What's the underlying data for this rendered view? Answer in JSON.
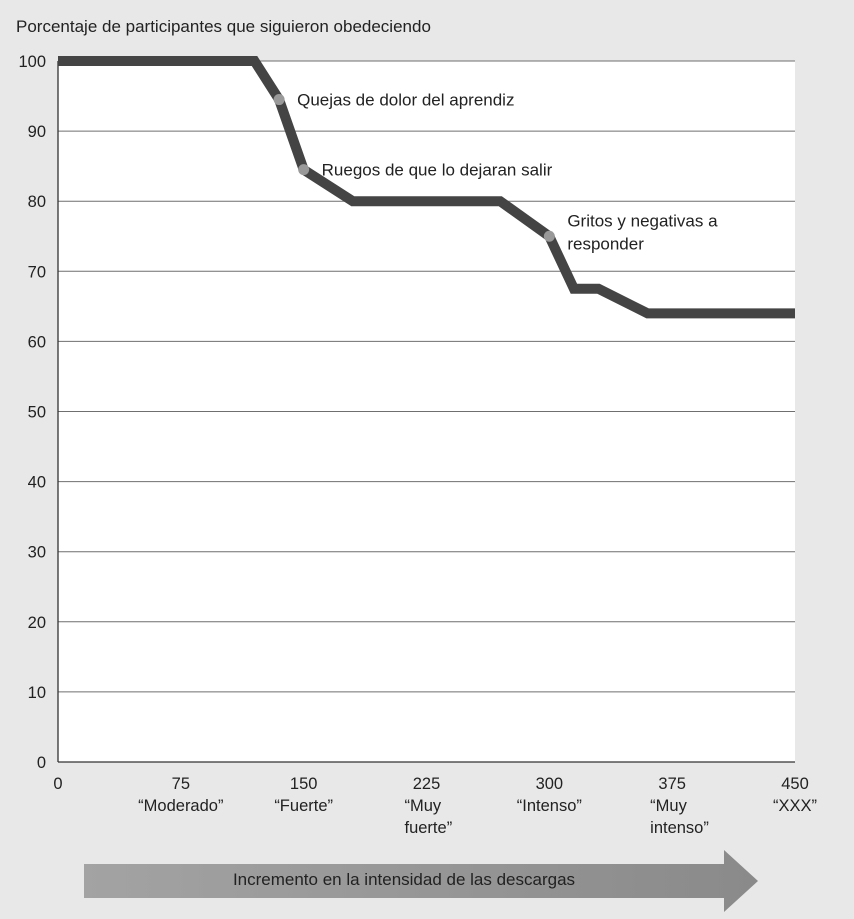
{
  "chart_data": {
    "type": "line",
    "ylabel": "Porcentaje de participantes que siguieron obedeciendo",
    "xlabel": "Incremento en la intensidad de las descargas",
    "xlim": [
      0,
      450
    ],
    "ylim": [
      0,
      100
    ],
    "y_ticks": [
      0,
      10,
      20,
      30,
      40,
      50,
      60,
      70,
      80,
      90,
      100
    ],
    "x_ticks": [
      {
        "value": 0,
        "label": "0",
        "category": ""
      },
      {
        "value": 75,
        "label": "75",
        "category": "“Moderado”"
      },
      {
        "value": 150,
        "label": "150",
        "category": "“Fuerte”"
      },
      {
        "value": 225,
        "label": "225",
        "category": "“Muy\nfuerte”"
      },
      {
        "value": 300,
        "label": "300",
        "category": "“Intenso”"
      },
      {
        "value": 375,
        "label": "375",
        "category": "“Muy\nintenso”"
      },
      {
        "value": 450,
        "label": "450",
        "category": "“XXX”"
      }
    ],
    "grid": true,
    "series": [
      {
        "color": "#444444",
        "points": [
          {
            "x": 0,
            "y": 100
          },
          {
            "x": 120,
            "y": 100
          },
          {
            "x": 135,
            "y": 94.5
          },
          {
            "x": 150,
            "y": 84.5
          },
          {
            "x": 180,
            "y": 80
          },
          {
            "x": 270,
            "y": 80
          },
          {
            "x": 300,
            "y": 75
          },
          {
            "x": 315,
            "y": 67.5
          },
          {
            "x": 330,
            "y": 67.5
          },
          {
            "x": 360,
            "y": 64
          },
          {
            "x": 450,
            "y": 64
          }
        ]
      }
    ],
    "annotations": [
      {
        "x": 135,
        "y": 94.5,
        "text": "Quejas de dolor del aprendiz"
      },
      {
        "x": 150,
        "y": 84.5,
        "text": "Ruegos de que lo dejaran salir"
      },
      {
        "x": 300,
        "y": 75,
        "text": "Gritos y negativas a\nresponder"
      }
    ]
  },
  "colors": {
    "background": "#e8e8e8",
    "plot_background": "#ffffff",
    "line": "#444444",
    "marker": "#999999",
    "arrow": "#9a9a9a"
  }
}
